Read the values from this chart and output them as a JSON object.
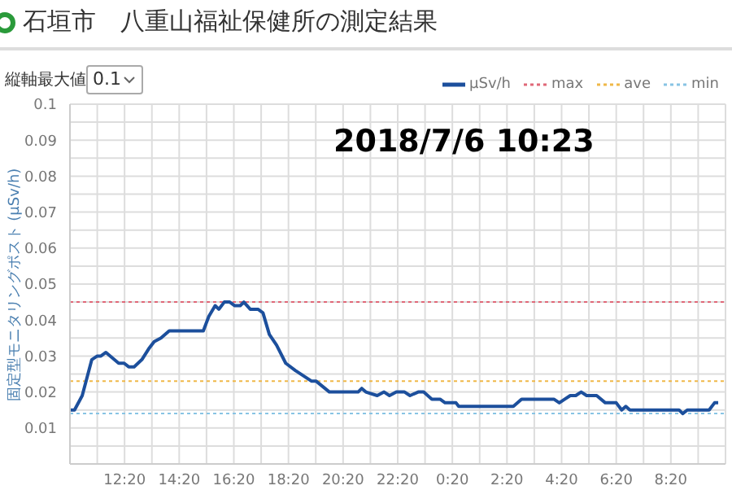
{
  "chart_data": {
    "type": "line",
    "title": "石垣市　八重山福祉保健所の測定結果",
    "ylabel": "固定型モニタリングポスト (μSv/h)",
    "annotations": [
      "2018/7/6 10:23",
      "縦軸最大値",
      "0.1"
    ],
    "xlim": [
      "2018-07-05T10:20",
      "2018-07-06T10:20"
    ],
    "xticks": [
      {
        "value": "2018-07-05T11:20",
        "label": null
      },
      {
        "value": "2018-07-05T12:20",
        "label": "12:20"
      },
      {
        "value": "2018-07-05T13:20",
        "label": null
      },
      {
        "value": "2018-07-05T14:20",
        "label": "14:20"
      },
      {
        "value": "2018-07-05T15:20",
        "label": null
      },
      {
        "value": "2018-07-05T16:20",
        "label": "16:20"
      },
      {
        "value": "2018-07-05T17:20",
        "label": null
      },
      {
        "value": "2018-07-05T18:20",
        "label": "18:20"
      },
      {
        "value": "2018-07-05T19:20",
        "label": null
      },
      {
        "value": "2018-07-05T20:20",
        "label": "20:20"
      },
      {
        "value": "2018-07-05T21:20",
        "label": null
      },
      {
        "value": "2018-07-05T22:20",
        "label": "22:20"
      },
      {
        "value": "2018-07-05T23:20",
        "label": null
      },
      {
        "value": "2018-07-06T00:20",
        "label": "0:20"
      },
      {
        "value": "2018-07-06T01:20",
        "label": null
      },
      {
        "value": "2018-07-06T02:20",
        "label": "2:20"
      },
      {
        "value": "2018-07-06T03:20",
        "label": null
      },
      {
        "value": "2018-07-06T04:20",
        "label": "4:20"
      },
      {
        "value": "2018-07-06T05:20",
        "label": null
      },
      {
        "value": "2018-07-06T06:20",
        "label": "6:20"
      },
      {
        "value": "2018-07-06T07:20",
        "label": null
      },
      {
        "value": "2018-07-06T08:20",
        "label": "8:20"
      },
      {
        "value": "2018-07-06T09:20",
        "label": null
      }
    ],
    "ylim": [
      0,
      0.1
    ],
    "yticks": [
      {
        "value": 0,
        "label": null
      },
      {
        "value": 0.005,
        "label": null
      },
      0.01,
      {
        "value": 0.015,
        "label": null
      },
      0.02,
      {
        "value": 0.025,
        "label": null
      },
      0.03,
      {
        "value": 0.035,
        "label": null
      },
      0.04,
      {
        "value": 0.045,
        "label": null
      },
      0.05,
      {
        "value": 0.055,
        "label": null
      },
      0.06,
      {
        "value": 0.065,
        "label": null
      },
      0.07,
      {
        "value": 0.075,
        "label": null
      },
      0.08,
      {
        "value": 0.085,
        "label": null
      },
      0.09,
      {
        "value": 0.095,
        "label": null
      },
      0.1
    ],
    "grid": true,
    "legend": "top right",
    "marker": "none",
    "line_style": "solid",
    "ref_lines": [
      {
        "axis": "y",
        "value": 0.045,
        "label": "max",
        "color": "#e06878",
        "line_style": "dotted"
      },
      {
        "axis": "y",
        "value": 0.023,
        "label": "ave",
        "color": "#f0b848",
        "line_style": "dotted"
      },
      {
        "axis": "y",
        "value": 0.014,
        "label": "min",
        "color": "#88c4e4",
        "line_style": "dotted"
      }
    ],
    "series": [
      {
        "name": "μSv/h",
        "color": "#1c4f9c",
        "x": [
          "2018-07-05T10:20",
          "2018-07-05T10:30",
          "2018-07-05T10:47",
          "2018-07-05T11:08",
          "2018-07-05T11:20",
          "2018-07-05T11:28",
          "2018-07-05T11:39",
          "2018-07-05T12:07",
          "2018-07-05T12:19",
          "2018-07-05T12:29",
          "2018-07-05T12:41",
          "2018-07-05T12:58",
          "2018-07-05T13:13",
          "2018-07-05T13:25",
          "2018-07-05T13:40",
          "2018-07-05T13:58",
          "2018-07-05T15:13",
          "2018-07-05T15:25",
          "2018-07-05T15:39",
          "2018-07-05T15:47",
          "2018-07-05T15:59",
          "2018-07-05T16:11",
          "2018-07-05T16:22",
          "2018-07-05T16:34",
          "2018-07-05T16:42",
          "2018-07-05T16:56",
          "2018-07-05T17:13",
          "2018-07-05T17:24",
          "2018-07-05T17:38",
          "2018-07-05T17:54",
          "2018-07-05T18:14",
          "2018-07-05T18:35",
          "2018-07-05T19:11",
          "2018-07-05T19:21",
          "2018-07-05T19:50",
          "2018-07-05T20:53",
          "2018-07-05T21:01",
          "2018-07-05T21:10",
          "2018-07-05T21:35",
          "2018-07-05T21:50",
          "2018-07-05T22:02",
          "2018-07-05T22:17",
          "2018-07-05T22:35",
          "2018-07-05T22:47",
          "2018-07-05T23:05",
          "2018-07-05T23:17",
          "2018-07-05T23:35",
          "2018-07-05T23:53",
          "2018-07-06T00:04",
          "2018-07-06T00:28",
          "2018-07-06T00:34",
          "2018-07-06T02:34",
          "2018-07-06T02:52",
          "2018-07-06T04:03",
          "2018-07-06T04:15",
          "2018-07-06T04:27",
          "2018-07-06T04:39",
          "2018-07-06T04:51",
          "2018-07-06T05:03",
          "2018-07-06T05:15",
          "2018-07-06T05:37",
          "2018-07-06T05:56",
          "2018-07-06T06:20",
          "2018-07-06T06:32",
          "2018-07-06T06:41",
          "2018-07-06T06:50",
          "2018-07-06T08:38",
          "2018-07-06T08:46",
          "2018-07-06T08:56",
          "2018-07-06T09:44",
          "2018-07-06T09:56",
          "2018-07-06T10:04"
        ],
        "values": [
          0.015,
          0.015,
          0.019,
          0.029,
          0.03,
          0.03,
          0.031,
          0.028,
          0.028,
          0.027,
          0.027,
          0.029,
          0.032,
          0.034,
          0.035,
          0.037,
          0.037,
          0.041,
          0.044,
          0.043,
          0.045,
          0.045,
          0.044,
          0.044,
          0.045,
          0.043,
          0.043,
          0.042,
          0.036,
          0.033,
          0.028,
          0.026,
          0.023,
          0.023,
          0.02,
          0.02,
          0.021,
          0.02,
          0.019,
          0.02,
          0.019,
          0.02,
          0.02,
          0.019,
          0.02,
          0.02,
          0.018,
          0.018,
          0.017,
          0.017,
          0.016,
          0.016,
          0.018,
          0.018,
          0.017,
          0.018,
          0.019,
          0.019,
          0.02,
          0.019,
          0.019,
          0.017,
          0.017,
          0.015,
          0.016,
          0.015,
          0.015,
          0.014,
          0.015,
          0.015,
          0.017,
          0.017
        ]
      }
    ]
  }
}
